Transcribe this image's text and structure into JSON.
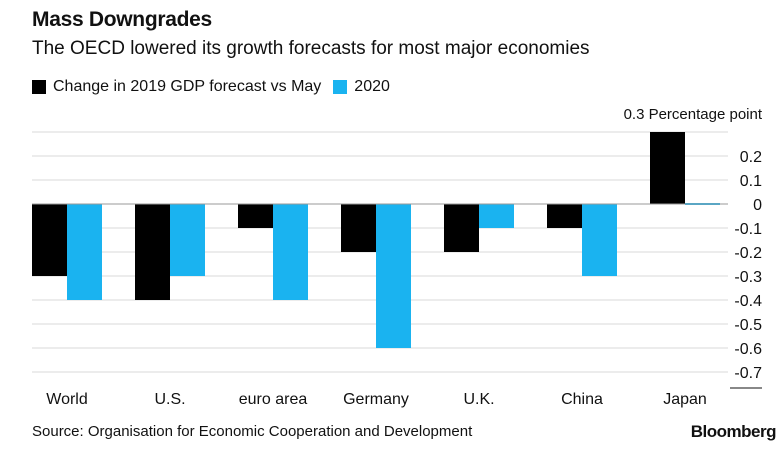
{
  "title": "Mass Downgrades",
  "subtitle": "The OECD lowered its growth forecasts for most major economies",
  "source": "Source: Organisation for Economic Cooperation and Development",
  "brand": "Bloomberg",
  "chart_data": {
    "type": "bar",
    "title": "Mass Downgrades",
    "subtitle": "The OECD lowered its growth forecasts for most major economies",
    "categories": [
      "World",
      "U.S.",
      "euro area",
      "Germany",
      "U.K.",
      "China",
      "Japan"
    ],
    "series": [
      {
        "name": "Change in 2019 GDP forecast vs May",
        "values": [
          -0.3,
          -0.4,
          -0.1,
          -0.2,
          -0.2,
          -0.1,
          0.3
        ],
        "color": "#000000"
      },
      {
        "name": "2020",
        "values": [
          -0.4,
          -0.3,
          -0.4,
          -0.6,
          -0.1,
          -0.3,
          0.0
        ],
        "color": "#1ab3f0"
      }
    ],
    "unit_label": "0.3 Percentage point",
    "ylim": [
      -0.7,
      0.3
    ],
    "yticks": [
      0.2,
      0.1,
      0,
      -0.1,
      -0.2,
      -0.3,
      -0.4,
      -0.5,
      -0.6,
      -0.7
    ],
    "grid": true,
    "legend": "top-left"
  }
}
